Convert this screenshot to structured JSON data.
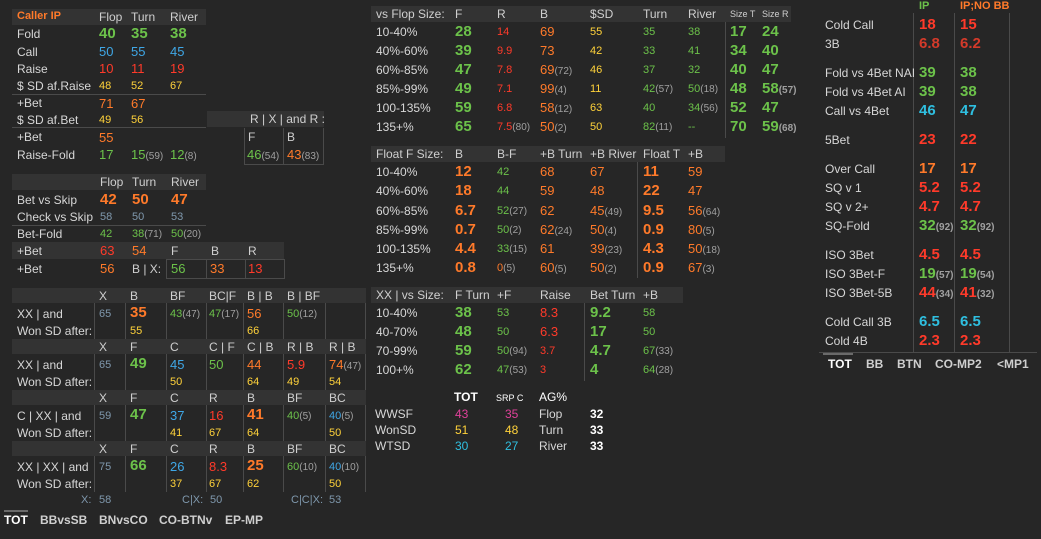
{
  "p1": {
    "header": {
      "title": "Caller IP",
      "cols": [
        "Flop",
        "Turn",
        "River"
      ]
    },
    "rows": [
      {
        "label": "Fold",
        "v": [
          "40",
          "35",
          "38"
        ]
      },
      {
        "label": "Call",
        "v": [
          "50",
          "55",
          "45"
        ]
      },
      {
        "label": "Raise",
        "v": [
          "10",
          "11",
          "19"
        ]
      },
      {
        "label": "$ SD af.Raise",
        "v": [
          "48",
          "52",
          "67"
        ]
      },
      {
        "label": "+Bet",
        "v": [
          "71",
          "67"
        ]
      },
      {
        "label": "$ SD af.Bet",
        "v": [
          "49",
          "56"
        ]
      },
      {
        "label": "+Bet",
        "v": [
          "55"
        ]
      },
      {
        "label": "Raise-Fold",
        "v": [
          "17",
          "15",
          "12"
        ],
        "s": [
          "",
          "(59)",
          "(8)"
        ]
      }
    ],
    "rxr": {
      "title": "R | X | and R :",
      "cols": [
        "F",
        "B"
      ],
      "v": [
        "46",
        "43"
      ],
      "s": [
        "(54)",
        "(83)"
      ]
    }
  },
  "p2": {
    "cols": [
      "Flop",
      "Turn",
      "River"
    ],
    "rows": [
      {
        "label": "Bet vs Skip",
        "v": [
          "42",
          "50",
          "47"
        ]
      },
      {
        "label": "Check vs Skip",
        "v": [
          "58",
          "50",
          "53"
        ]
      },
      {
        "label": "Bet-Fold",
        "v": [
          "42",
          "38",
          "50"
        ],
        "s": [
          "",
          "(71)",
          "(20)"
        ]
      },
      {
        "label": "+Bet",
        "v": [
          "63",
          "54"
        ],
        "cols": [
          "F",
          "B",
          "R"
        ]
      },
      {
        "label": "+Bet",
        "v": [
          "56"
        ],
        "mid": "B | X:",
        "v2": [
          "56",
          "33",
          "13"
        ]
      }
    ]
  },
  "p3": {
    "blocks": [
      {
        "line1": "XX | and",
        "line2": "Won SD after:",
        "cols": [
          "X",
          "B",
          "BF",
          "BC|F",
          "B | B",
          "B | BF"
        ],
        "top": [
          "65",
          "35",
          "43",
          "47",
          "56",
          "50"
        ],
        "tops": [
          "",
          "",
          "(47)",
          "(17)",
          "",
          "(12)"
        ],
        "bot": [
          "55",
          "66"
        ]
      },
      {
        "line1": "XX | and",
        "line2": "Won SD after:",
        "cols": [
          "X",
          "F",
          "C",
          "C | F",
          "C | B",
          "R | B",
          "R | B"
        ],
        "top": [
          "65",
          "49",
          "45",
          "50",
          "44",
          "5.9",
          "74"
        ],
        "tops": [
          "",
          "",
          "",
          "",
          "",
          "",
          "(47)"
        ],
        "bot": [
          "50",
          "64",
          "49",
          "54"
        ]
      },
      {
        "line1": "C | XX | and",
        "line2": "Won SD after:",
        "cols": [
          "X",
          "F",
          "C",
          "R",
          "B",
          "BF",
          "BC"
        ],
        "top": [
          "59",
          "47",
          "37",
          "16",
          "41",
          "40",
          "40"
        ],
        "tops": [
          "",
          "",
          "",
          "",
          "",
          "(5)",
          "(5)"
        ],
        "bot": [
          "41",
          "67",
          "64",
          "50"
        ]
      },
      {
        "line1": "XX | XX | and",
        "line2": "Won SD after:",
        "cols": [
          "X",
          "F",
          "C",
          "R",
          "B",
          "BF",
          "BC"
        ],
        "top": [
          "75",
          "66",
          "26",
          "8.3",
          "25",
          "60",
          "40"
        ],
        "tops": [
          "",
          "",
          "",
          "",
          "",
          "(10)",
          "(10)"
        ],
        "bot": [
          "37",
          "67",
          "62",
          "50"
        ]
      }
    ],
    "footer": [
      "X:",
      "58",
      "C|X:",
      "50",
      "C|C|X:",
      "53"
    ]
  },
  "tabs_left": [
    "TOT",
    "BBvsSB",
    "BNvsCO",
    "CO-BTNv",
    "EP-MP"
  ],
  "p4": {
    "header": [
      "vs Flop Size:",
      "F",
      "R",
      "B",
      "$SD",
      "Turn",
      "River",
      "Size T",
      "Size R"
    ],
    "rows": [
      {
        "label": "10-40%",
        "v": [
          "28",
          "14",
          "69",
          "55",
          "35",
          "38",
          "17",
          "24"
        ],
        "s": [
          "",
          "",
          "",
          "",
          "",
          "",
          "",
          ""
        ]
      },
      {
        "label": "40%-60%",
        "v": [
          "39",
          "9.9",
          "73",
          "42",
          "33",
          "41",
          "34",
          "40"
        ],
        "s": [
          "",
          "",
          "",
          "",
          "",
          "",
          "",
          ""
        ]
      },
      {
        "label": "60%-85%",
        "v": [
          "47",
          "7.8",
          "69",
          "46",
          "37",
          "32",
          "40",
          "47"
        ],
        "s": [
          "",
          "",
          "(72)",
          "",
          "",
          "",
          "",
          ""
        ]
      },
      {
        "label": "85%-99%",
        "v": [
          "49",
          "7.1",
          "99",
          "11",
          "42",
          "50",
          "48",
          "58"
        ],
        "s": [
          "",
          "",
          "(4)",
          "",
          "(57)",
          "(18)",
          "",
          "(57)"
        ]
      },
      {
        "label": "100-135%",
        "v": [
          "59",
          "6.8",
          "58",
          "63",
          "40",
          "34",
          "52",
          "47"
        ],
        "s": [
          "",
          "",
          "(12)",
          "",
          "",
          "(56)",
          "",
          ""
        ]
      },
      {
        "label": "135+%",
        "v": [
          "65",
          "7.5",
          "50",
          "50",
          "82",
          "--",
          "70",
          "59"
        ],
        "s": [
          "",
          "(80)",
          "(2)",
          "",
          "(11)",
          "",
          "",
          "(68)"
        ]
      }
    ]
  },
  "p5": {
    "header": [
      "Float F Size:",
      "B",
      "B-F",
      "+B Turn",
      "+B River",
      "Float T",
      "+B"
    ],
    "rows": [
      {
        "label": "10-40%",
        "v": [
          "12",
          "42",
          "68",
          "67",
          "11",
          "59"
        ],
        "s": [
          "",
          "",
          "",
          "",
          "",
          ""
        ]
      },
      {
        "label": "40%-60%",
        "v": [
          "18",
          "44",
          "59",
          "48",
          "22",
          "47"
        ],
        "s": [
          "",
          "",
          "",
          "",
          "",
          ""
        ]
      },
      {
        "label": "60%-85%",
        "v": [
          "6.7",
          "52",
          "62",
          "45",
          "9.5",
          "56"
        ],
        "s": [
          "",
          "(27)",
          "",
          "(49)",
          "",
          "(64)"
        ]
      },
      {
        "label": "85%-99%",
        "v": [
          "0.7",
          "50",
          "62",
          "50",
          "0.9",
          "80"
        ],
        "s": [
          "",
          "(2)",
          "(24)",
          "(4)",
          "",
          "(5)"
        ]
      },
      {
        "label": "100-135%",
        "v": [
          "4.4",
          "33",
          "61",
          "39",
          "4.3",
          "50"
        ],
        "s": [
          "",
          "(15)",
          "",
          "(23)",
          "",
          "(18)"
        ]
      },
      {
        "label": "135+%",
        "v": [
          "0.8",
          "0",
          "60",
          "50",
          "0.9",
          "67"
        ],
        "s": [
          "",
          "(5)",
          "(5)",
          "(2)",
          "",
          "(3)"
        ]
      }
    ]
  },
  "p6": {
    "header": [
      "XX | vs Size:",
      "F Turn",
      "+F",
      "Raise",
      "Bet Turn",
      "+B"
    ],
    "rows": [
      {
        "label": "10-40%",
        "v": [
          "38",
          "53",
          "8.3",
          "9.2",
          "58"
        ],
        "s": [
          "",
          "",
          "",
          "",
          ""
        ]
      },
      {
        "label": "40-70%",
        "v": [
          "48",
          "50",
          "6.3",
          "17",
          "50"
        ],
        "s": [
          "",
          "",
          "",
          "",
          ""
        ]
      },
      {
        "label": "70-99%",
        "v": [
          "59",
          "50",
          "3.7",
          "4.7",
          "67"
        ],
        "s": [
          "",
          "(94)",
          "",
          "",
          "(33)"
        ]
      },
      {
        "label": "100+%",
        "v": [
          "62",
          "47",
          "3",
          "4",
          "64"
        ],
        "s": [
          "",
          "(53)",
          "",
          "",
          "(28)"
        ]
      }
    ]
  },
  "p7": {
    "headers": [
      "TOT",
      "SRP C",
      "AG%"
    ],
    "rows": [
      {
        "label": "WWSF",
        "v": [
          "43",
          "35"
        ],
        "ag_label": "Flop",
        "ag": "32"
      },
      {
        "label": "WonSD",
        "v": [
          "51",
          "48"
        ],
        "ag_label": "Turn",
        "ag": "33"
      },
      {
        "label": "WTSD",
        "v": [
          "30",
          "27"
        ],
        "ag_label": "River",
        "ag": "33"
      }
    ]
  },
  "p8": {
    "cols": [
      "IP",
      "IP;NO BB"
    ],
    "groups": [
      [
        {
          "label": "Cold Call",
          "v": [
            "18",
            "15"
          ]
        },
        {
          "label": "3B",
          "v": [
            "6.8",
            "6.2"
          ]
        }
      ],
      [
        {
          "label": "Fold vs 4Bet NAI",
          "v": [
            "39",
            "38"
          ]
        },
        {
          "label": "Fold vs 4Bet AI",
          "v": [
            "39",
            "38"
          ]
        },
        {
          "label": "Call vs 4Bet",
          "v": [
            "46",
            "47"
          ]
        }
      ],
      [
        {
          "label": "5Bet",
          "v": [
            "23",
            "22"
          ]
        }
      ],
      [
        {
          "label": "Over Call",
          "v": [
            "17",
            "17"
          ]
        },
        {
          "label": "SQ v 1",
          "v": [
            "5.2",
            "5.2"
          ]
        },
        {
          "label": "SQ v 2+",
          "v": [
            "4.7",
            "4.7"
          ]
        },
        {
          "label": "SQ-Fold",
          "v": [
            "32",
            "32"
          ],
          "s": [
            "(92)",
            "(92)"
          ]
        }
      ],
      [
        {
          "label": "ISO 3Bet",
          "v": [
            "4.5",
            "4.5"
          ]
        },
        {
          "label": "ISO 3Bet-F",
          "v": [
            "19",
            "19"
          ],
          "s": [
            "(57)",
            "(54)"
          ]
        },
        {
          "label": "ISO 3Bet-5B",
          "v": [
            "44",
            "41"
          ],
          "s": [
            "(34)",
            "(32)"
          ]
        }
      ],
      [
        {
          "label": "Cold Call 3B",
          "v": [
            "6.5",
            "6.5"
          ]
        },
        {
          "label": "Cold 4B",
          "v": [
            "2.3",
            "2.3"
          ]
        }
      ]
    ]
  },
  "tabs_right": [
    "TOT",
    "BB",
    "BTN",
    "CO-MP2",
    "<MP1"
  ]
}
